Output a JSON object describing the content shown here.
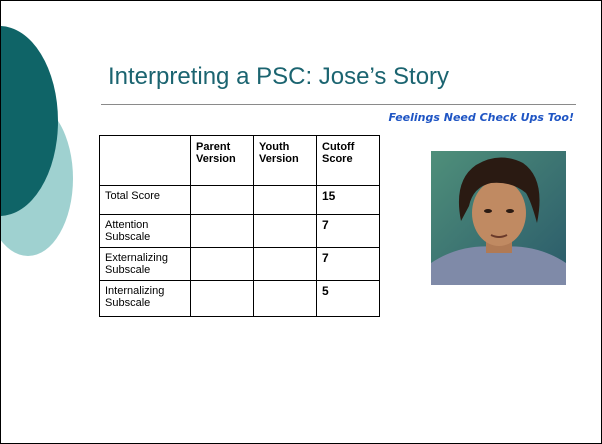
{
  "header": {
    "title": "Interpreting a PSC:  Jose’s Story",
    "subtitle": "Feelings Need Check Ups Too!"
  },
  "table": {
    "columns": [
      "",
      "Parent Version",
      "Youth Version",
      "Cutoff Score"
    ],
    "rows": [
      [
        "Total Score",
        "",
        "",
        15
      ],
      [
        "Attention Subscale",
        "",
        "",
        7
      ],
      [
        "Externalizing Subscale",
        "",
        "",
        7
      ],
      [
        "Internalizing Subscale",
        "",
        "",
        5
      ]
    ]
  }
}
